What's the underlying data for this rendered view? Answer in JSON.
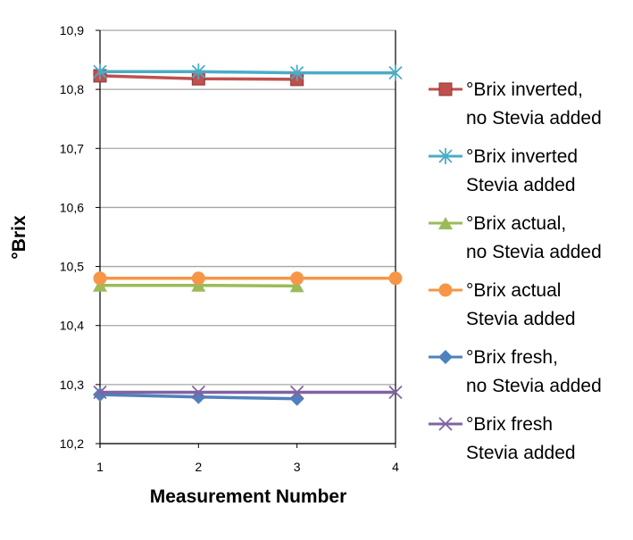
{
  "chart_data": {
    "type": "line",
    "title": "",
    "xlabel": "Measurement Number",
    "ylabel": "°Brix",
    "ylim": [
      10.2,
      10.9
    ],
    "yticks": [
      "10,2",
      "10,3",
      "10,4",
      "10,5",
      "10,6",
      "10,7",
      "10,8",
      "10,9"
    ],
    "xticks": [
      "1",
      "2",
      "3",
      "4"
    ],
    "grid": true,
    "legend_position": "right",
    "series": [
      {
        "name": [
          "°Brix inverted,",
          "no Stevia added"
        ],
        "color": "#c0504d",
        "marker": "square",
        "x": [
          1,
          2,
          3
        ],
        "values": [
          10.823,
          10.818,
          10.817
        ]
      },
      {
        "name": [
          "°Brix inverted",
          "Stevia added"
        ],
        "color": "#4bacc6",
        "marker": "star",
        "x": [
          1,
          2,
          3,
          4
        ],
        "values": [
          10.83,
          10.83,
          10.828,
          10.828
        ]
      },
      {
        "name": [
          "°Brix actual,",
          "no Stevia added"
        ],
        "color": "#9bbb59",
        "marker": "triangle",
        "x": [
          1,
          2,
          3
        ],
        "values": [
          10.468,
          10.468,
          10.467
        ]
      },
      {
        "name": [
          "°Brix actual",
          "Stevia added"
        ],
        "color": "#f79646",
        "marker": "circle",
        "x": [
          1,
          2,
          3,
          4
        ],
        "values": [
          10.48,
          10.48,
          10.48,
          10.48
        ]
      },
      {
        "name": [
          "°Brix fresh,",
          "no Stevia added"
        ],
        "color": "#4f81bd",
        "marker": "diamond",
        "x": [
          1,
          2,
          3
        ],
        "values": [
          10.283,
          10.279,
          10.276
        ]
      },
      {
        "name": [
          "°Brix fresh",
          "Stevia added"
        ],
        "color": "#8064a2",
        "marker": "x",
        "x": [
          1,
          2,
          3,
          4
        ],
        "values": [
          10.287,
          10.287,
          10.287,
          10.287
        ]
      }
    ]
  }
}
